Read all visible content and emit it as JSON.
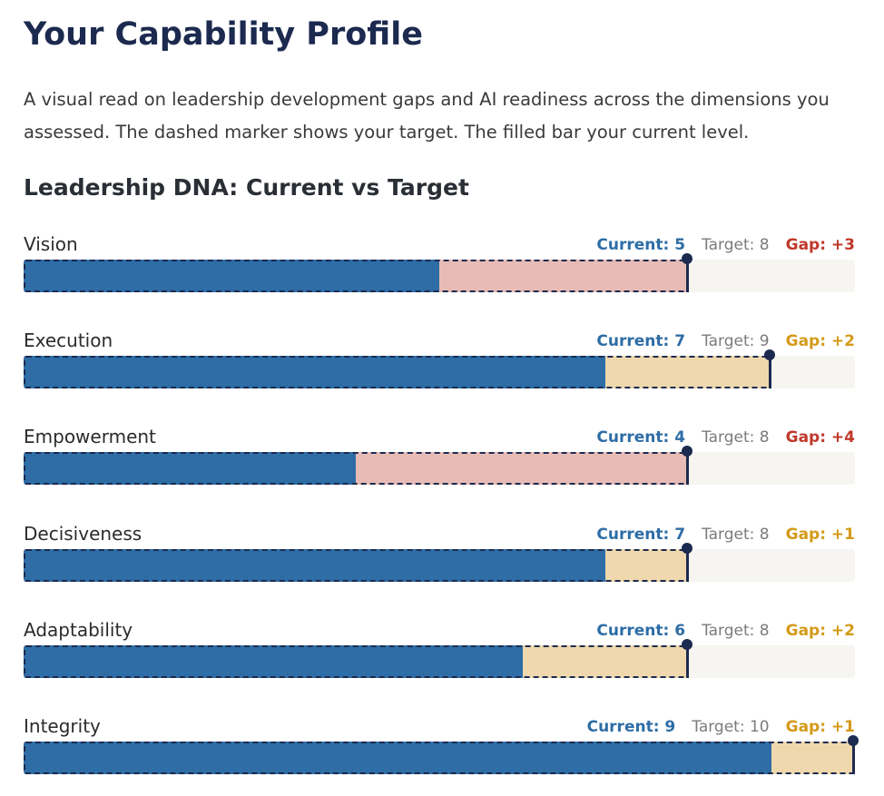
{
  "page": {
    "title": "Your Capability Profile",
    "intro": "A visual read on leadership development gaps and AI readiness across the dimensions you assessed. The dashed marker shows your target. The filled bar your current level."
  },
  "colors": {
    "current": "#2e6da6",
    "target_marker": "#1c2a4f",
    "gap_large_fill": "#e8bcb6",
    "gap_small_fill": "#efd8ad",
    "gap_large_text": "#c0392b",
    "gap_small_text": "#d49a18",
    "track": "#f6f5f1"
  },
  "chart_data": {
    "type": "bar",
    "title": "Leadership DNA: Current vs Target",
    "xlim": [
      0,
      10
    ],
    "categories": [
      "Vision",
      "Execution",
      "Empowerment",
      "Decisiveness",
      "Adaptability",
      "Integrity"
    ],
    "series": [
      {
        "name": "Current",
        "values": [
          5,
          7,
          4,
          7,
          6,
          9
        ]
      },
      {
        "name": "Target",
        "values": [
          8,
          9,
          8,
          8,
          8,
          10
        ]
      }
    ],
    "rows": [
      {
        "label": "Vision",
        "current": 5,
        "target": 8,
        "current_text": "Current: 5",
        "target_text": "Target: 8",
        "gap_text": "Gap: +3",
        "severity": "large"
      },
      {
        "label": "Execution",
        "current": 7,
        "target": 9,
        "current_text": "Current: 7",
        "target_text": "Target: 9",
        "gap_text": "Gap: +2",
        "severity": "small"
      },
      {
        "label": "Empowerment",
        "current": 4,
        "target": 8,
        "current_text": "Current: 4",
        "target_text": "Target: 8",
        "gap_text": "Gap: +4",
        "severity": "large"
      },
      {
        "label": "Decisiveness",
        "current": 7,
        "target": 8,
        "current_text": "Current: 7",
        "target_text": "Target: 8",
        "gap_text": "Gap: +1",
        "severity": "small"
      },
      {
        "label": "Adaptability",
        "current": 6,
        "target": 8,
        "current_text": "Current: 6",
        "target_text": "Target: 8",
        "gap_text": "Gap: +2",
        "severity": "small"
      },
      {
        "label": "Integrity",
        "current": 9,
        "target": 10,
        "current_text": "Current: 9",
        "target_text": "Target: 10",
        "gap_text": "Gap: +1",
        "severity": "small"
      }
    ]
  }
}
